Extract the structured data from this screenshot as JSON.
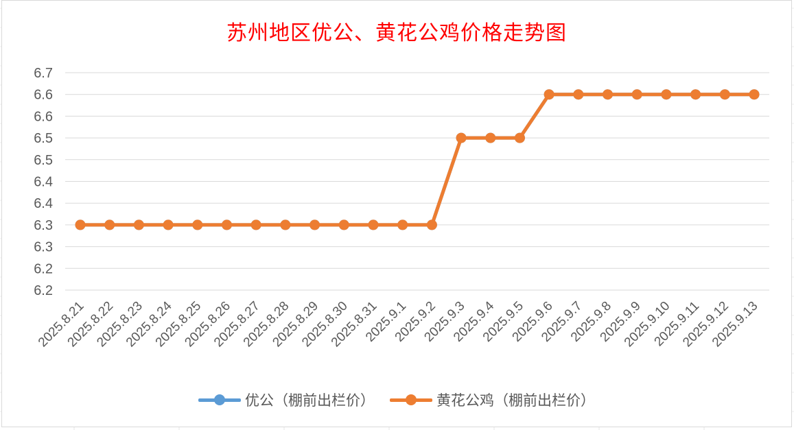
{
  "chart_data": {
    "type": "line",
    "title": "苏州地区优公、黄花公鸡价格走势图",
    "categories": [
      "2025.8.21",
      "2025.8.22",
      "2025.8.23",
      "2025.8.24",
      "2025.8.25",
      "2025.8.26",
      "2025.8.27",
      "2025.8.28",
      "2025.8.29",
      "2025.8.30",
      "2025.8.31",
      "2025.9.1",
      "2025.9.2",
      "2025.9.3",
      "2025.9.4",
      "2025.9.5",
      "2025.9.6",
      "2025.9.7",
      "2025.9.8",
      "2025.9.9",
      "2025.9.10",
      "2025.9.11",
      "2025.9.12",
      "2025.9.13"
    ],
    "y_tick_labels": [
      "6.7",
      "6.6",
      "6.6",
      "6.5",
      "6.5",
      "6.4",
      "6.4",
      "6.3",
      "6.3",
      "6.2",
      "6.2"
    ],
    "ylim": [
      6.2,
      6.7
    ],
    "grid": true,
    "legend_position": "bottom",
    "series": [
      {
        "name": "优公（棚前出栏价）",
        "color": "#5b9bd5",
        "values": [
          6.35,
          6.35,
          6.35,
          6.35,
          6.35,
          6.35,
          6.35,
          6.35,
          6.35,
          6.35,
          6.35,
          6.35,
          6.35,
          6.55,
          6.55,
          6.55,
          6.65,
          6.65,
          6.65,
          6.65,
          6.65,
          6.65,
          6.65,
          6.65
        ]
      },
      {
        "name": "黄花公鸡（棚前出栏价）",
        "color": "#ed7d31",
        "values": [
          6.35,
          6.35,
          6.35,
          6.35,
          6.35,
          6.35,
          6.35,
          6.35,
          6.35,
          6.35,
          6.35,
          6.35,
          6.35,
          6.55,
          6.55,
          6.55,
          6.65,
          6.65,
          6.65,
          6.65,
          6.65,
          6.65,
          6.65,
          6.65
        ]
      }
    ]
  }
}
